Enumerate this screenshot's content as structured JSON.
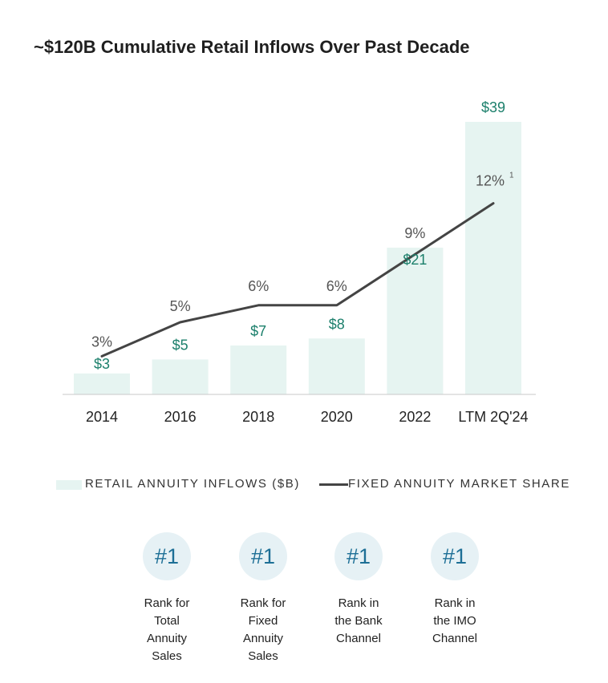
{
  "title": "~$120B Cumulative Retail Inflows Over Past Decade",
  "chart_data": {
    "type": "bar",
    "categories": [
      "2014",
      "2016",
      "2018",
      "2020",
      "2022",
      "LTM 2Q'24"
    ],
    "series": [
      {
        "name": "RETAIL ANNUITY INFLOWS ($B)",
        "type": "bar",
        "values": [
          3,
          5,
          7,
          8,
          21,
          39
        ],
        "labels": [
          "$3",
          "$5",
          "$7",
          "$8",
          "$21",
          "$39"
        ]
      },
      {
        "name": "FIXED ANNUITY MARKET SHARE",
        "type": "line",
        "values": [
          3,
          5,
          6,
          6,
          9,
          12
        ],
        "labels": [
          "3%",
          "5%",
          "6%",
          "6%",
          "9%",
          "12%"
        ],
        "footnote": "1"
      }
    ],
    "title": "~$120B Cumulative Retail Inflows Over Past Decade",
    "bar_color": "#e6f4f1",
    "line_color": "#444444",
    "bar_label_color": "#1b7f6b",
    "line_label_color": "#555555",
    "grid": false,
    "legend_position": "bottom"
  },
  "legend": {
    "bar_label": "RETAIL ANNUITY INFLOWS ($B)",
    "line_label": "FIXED ANNUITY MARKET SHARE"
  },
  "rankings": [
    {
      "rank": "#1",
      "text": "Rank for\nTotal\nAnnuity\nSales"
    },
    {
      "rank": "#1",
      "text": "Rank for\nFixed\nAnnuity\nSales"
    },
    {
      "rank": "#1",
      "text": "Rank in\nthe Bank\nChannel"
    },
    {
      "rank": "#1",
      "text": "Rank in\nthe IMO\nChannel"
    }
  ]
}
